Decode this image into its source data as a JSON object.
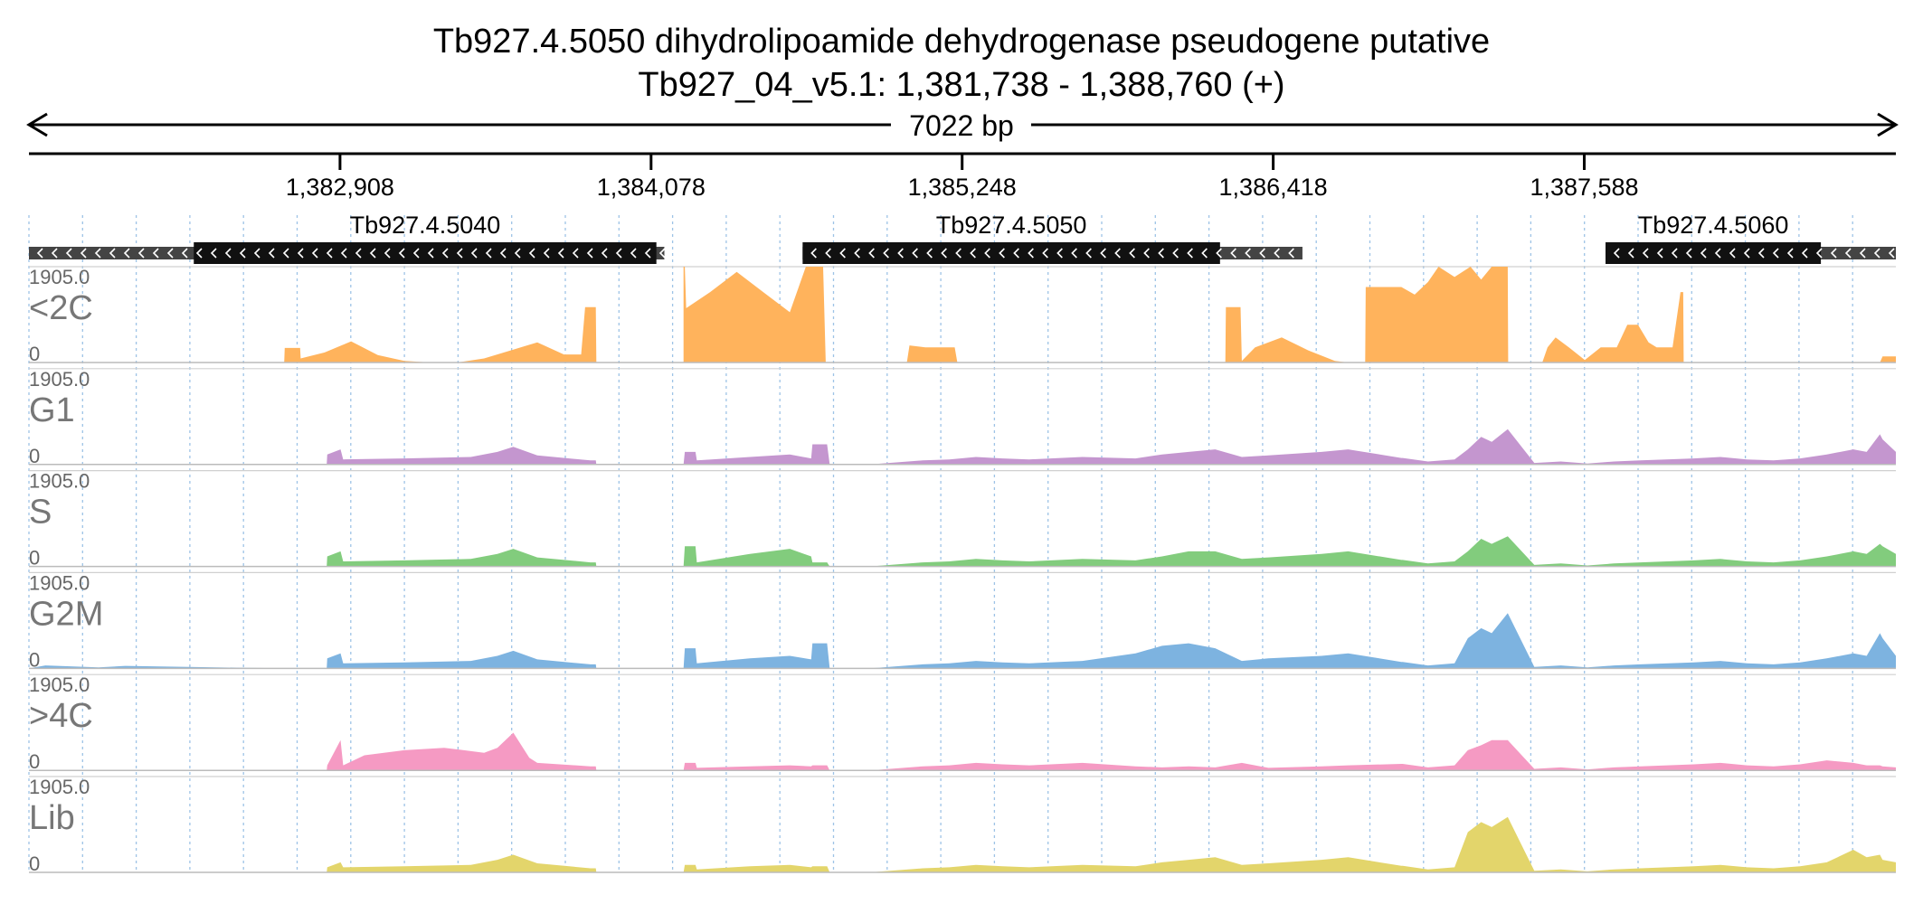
{
  "title": {
    "line1": "Tb927.4.5050  dihydrolipoamide dehydrogenase  pseudogene  putative",
    "line2": "Tb927_04_v5.1: 1,381,738 - 1,388,760 (+)"
  },
  "span_label": "7022 bp",
  "chart_data": {
    "type": "area",
    "x_range": [
      1381738,
      1388760
    ],
    "ticks": [
      {
        "value": 1382908,
        "label": "1,382,908"
      },
      {
        "value": 1384078,
        "label": "1,384,078"
      },
      {
        "value": 1385248,
        "label": "1,385,248"
      },
      {
        "value": 1386418,
        "label": "1,386,418"
      },
      {
        "value": 1387588,
        "label": "1,387,588"
      }
    ],
    "grid": true,
    "genes": [
      {
        "name": "Tb927.4.5040",
        "strand": "-",
        "utr_start": 1381738,
        "cds_start": 1382358,
        "cds_end": 1384098,
        "utr_end": 1384128
      },
      {
        "name": "Tb927.4.5050",
        "strand": "-",
        "utr_start": 1384648,
        "cds_start": 1384648,
        "cds_end": 1386218,
        "utr_end": 1386528
      },
      {
        "name": "Tb927.4.5060",
        "strand": "-",
        "utr_start": 1387668,
        "cds_start": 1387668,
        "cds_end": 1388478,
        "utr_end": 1388760
      }
    ],
    "ylim": [
      0,
      1905.0
    ],
    "y_max_label": "1905.0",
    "y_min_label": "0",
    "tracks": [
      {
        "name": "<2C",
        "color": "#ffb35c",
        "x": [
          1381738,
          1382698,
          1382700,
          1382758,
          1382760,
          1382850,
          1382950,
          1383050,
          1383150,
          1383250,
          1383350,
          1383450,
          1383550,
          1383650,
          1383750,
          1383815,
          1383830,
          1383870,
          1383872,
          1383890,
          1383960,
          1384020,
          1384100,
          1384200,
          1384200,
          1384205,
          1384210,
          1384300,
          1384400,
          1384500,
          1384600,
          1384660,
          1384725,
          1384735,
          1384740,
          1385040,
          1385050,
          1385110,
          1385220,
          1385230,
          1385280,
          1385290,
          1385350,
          1385400,
          1386238,
          1386240,
          1386295,
          1386300,
          1386350,
          1386450,
          1386550,
          1386650,
          1386700,
          1386764,
          1386766,
          1386900,
          1386950,
          1387000,
          1387040,
          1387100,
          1387160,
          1387200,
          1387240,
          1387300,
          1387302,
          1387360,
          1387430,
          1387450,
          1387480,
          1387530,
          1387590,
          1387650,
          1387710,
          1387750,
          1387790,
          1387830,
          1387860,
          1387920,
          1387950,
          1387960,
          1387962,
          1387990,
          1388060,
          1388700,
          1388710,
          1388760
        ],
        "y": [
          0,
          0,
          290,
          290,
          80,
          200,
          420,
          150,
          30,
          0,
          0,
          80,
          240,
          400,
          160,
          160,
          1100,
          1100,
          0,
          0,
          0,
          0,
          0,
          0,
          1905,
          1905,
          1080,
          1400,
          1800,
          1400,
          1000,
          1905,
          1905,
          0,
          0,
          0,
          340,
          300,
          300,
          0,
          0,
          0,
          0,
          0,
          0,
          1100,
          1100,
          30,
          300,
          500,
          240,
          30,
          0,
          0,
          1500,
          1500,
          1350,
          1600,
          1905,
          1700,
          1905,
          1650,
          1905,
          1905,
          0,
          0,
          0,
          300,
          500,
          300,
          50,
          300,
          300,
          750,
          750,
          400,
          300,
          300,
          1400,
          1400,
          0,
          0,
          0,
          0,
          120,
          120
        ]
      },
      {
        "name": "G1",
        "color": "#c496cf",
        "x": [
          1381738,
          1382700,
          1382858,
          1382860,
          1382910,
          1382920,
          1383150,
          1383400,
          1383500,
          1383560,
          1383650,
          1383850,
          1383870,
          1383872,
          1383970,
          1383980,
          1384200,
          1384205,
          1384245,
          1384250,
          1384450,
          1384600,
          1384680,
          1384685,
          1384740,
          1384750,
          1384900,
          1385100,
          1385200,
          1385300,
          1385400,
          1385500,
          1385700,
          1385900,
          1386000,
          1386100,
          1386200,
          1386300,
          1386400,
          1386600,
          1386700,
          1386900,
          1386905,
          1387000,
          1387100,
          1387150,
          1387200,
          1387240,
          1387300,
          1387400,
          1387500,
          1387600,
          1387700,
          1387800,
          1388000,
          1388100,
          1388200,
          1388300,
          1388400,
          1388500,
          1388600,
          1388650,
          1388700,
          1388710,
          1388760
        ],
        "y": [
          0,
          0,
          0,
          200,
          300,
          100,
          120,
          150,
          250,
          350,
          180,
          80,
          80,
          0,
          0,
          0,
          0,
          250,
          250,
          80,
          150,
          200,
          120,
          400,
          400,
          0,
          0,
          80,
          100,
          150,
          120,
          100,
          150,
          120,
          200,
          250,
          300,
          150,
          180,
          250,
          300,
          130,
          130,
          60,
          100,
          300,
          550,
          450,
          700,
          30,
          60,
          20,
          60,
          80,
          120,
          150,
          100,
          80,
          120,
          200,
          300,
          250,
          600,
          500,
          250
        ]
      },
      {
        "name": "S",
        "color": "#82cc7d",
        "x": [
          1381738,
          1382700,
          1382858,
          1382860,
          1382910,
          1382920,
          1383150,
          1383400,
          1383500,
          1383560,
          1383650,
          1383850,
          1383870,
          1383872,
          1383970,
          1383980,
          1384200,
          1384205,
          1384245,
          1384250,
          1384450,
          1384600,
          1384680,
          1384685,
          1384740,
          1384750,
          1384900,
          1385100,
          1385200,
          1385300,
          1385400,
          1385500,
          1385700,
          1385900,
          1386000,
          1386100,
          1386200,
          1386300,
          1386400,
          1386600,
          1386700,
          1386900,
          1386905,
          1387000,
          1387100,
          1387150,
          1387200,
          1387240,
          1387300,
          1387400,
          1387500,
          1387600,
          1387700,
          1387800,
          1388000,
          1388100,
          1388200,
          1388300,
          1388400,
          1388500,
          1388600,
          1388650,
          1388700,
          1388710,
          1388760
        ],
        "y": [
          0,
          0,
          0,
          200,
          300,
          100,
          120,
          150,
          250,
          350,
          180,
          80,
          80,
          0,
          0,
          0,
          0,
          400,
          400,
          80,
          250,
          350,
          200,
          80,
          80,
          0,
          0,
          80,
          100,
          150,
          120,
          100,
          150,
          120,
          200,
          300,
          300,
          150,
          180,
          250,
          300,
          130,
          130,
          60,
          100,
          300,
          550,
          450,
          600,
          30,
          60,
          20,
          60,
          80,
          120,
          150,
          100,
          80,
          120,
          200,
          300,
          250,
          450,
          400,
          250
        ]
      },
      {
        "name": "G2M",
        "color": "#7db3e0",
        "x": [
          1381738,
          1381800,
          1382000,
          1382100,
          1382700,
          1382858,
          1382860,
          1382910,
          1382920,
          1383150,
          1383400,
          1383500,
          1383560,
          1383650,
          1383850,
          1383870,
          1383872,
          1383970,
          1383980,
          1384200,
          1384205,
          1384245,
          1384250,
          1384450,
          1384600,
          1384680,
          1384685,
          1384740,
          1384750,
          1384900,
          1385100,
          1385200,
          1385300,
          1385400,
          1385500,
          1385700,
          1385900,
          1386000,
          1386100,
          1386200,
          1386300,
          1386400,
          1386600,
          1386700,
          1386900,
          1386905,
          1387000,
          1387100,
          1387150,
          1387200,
          1387240,
          1387300,
          1387400,
          1387500,
          1387600,
          1387700,
          1387800,
          1388000,
          1388100,
          1388200,
          1388300,
          1388400,
          1388500,
          1388600,
          1388650,
          1388700,
          1388710,
          1388760
        ],
        "y": [
          0,
          60,
          20,
          50,
          0,
          0,
          200,
          300,
          100,
          120,
          150,
          250,
          350,
          180,
          80,
          80,
          0,
          0,
          0,
          0,
          400,
          400,
          100,
          200,
          250,
          180,
          500,
          500,
          0,
          0,
          80,
          100,
          150,
          120,
          100,
          150,
          300,
          450,
          500,
          400,
          150,
          200,
          250,
          300,
          130,
          130,
          60,
          100,
          600,
          800,
          700,
          1100,
          30,
          60,
          20,
          60,
          80,
          120,
          150,
          100,
          80,
          120,
          200,
          300,
          250,
          700,
          600,
          250
        ]
      },
      {
        "name": ">4C",
        "color": "#f59ac3",
        "x": [
          1381738,
          1382700,
          1382858,
          1382860,
          1382910,
          1382920,
          1383000,
          1383150,
          1383300,
          1383450,
          1383500,
          1383560,
          1383620,
          1383650,
          1383850,
          1383870,
          1383872,
          1383970,
          1383980,
          1384200,
          1384205,
          1384245,
          1384250,
          1384450,
          1384600,
          1384680,
          1384685,
          1384740,
          1384750,
          1384900,
          1385100,
          1385200,
          1385300,
          1385400,
          1385500,
          1385700,
          1385900,
          1386000,
          1386100,
          1386200,
          1386300,
          1386400,
          1386600,
          1386700,
          1386900,
          1386905,
          1387000,
          1387100,
          1387150,
          1387200,
          1387240,
          1387300,
          1387400,
          1387500,
          1387600,
          1387700,
          1387800,
          1388000,
          1388100,
          1388200,
          1388300,
          1388400,
          1388500,
          1388600,
          1388650,
          1388700,
          1388710,
          1388760
        ],
        "y": [
          0,
          0,
          0,
          100,
          600,
          100,
          300,
          400,
          450,
          350,
          450,
          750,
          250,
          150,
          80,
          80,
          0,
          0,
          0,
          0,
          150,
          150,
          50,
          80,
          100,
          80,
          100,
          100,
          0,
          0,
          80,
          100,
          150,
          120,
          100,
          150,
          80,
          60,
          80,
          60,
          150,
          50,
          80,
          100,
          130,
          130,
          60,
          100,
          400,
          500,
          600,
          600,
          30,
          60,
          20,
          60,
          80,
          120,
          150,
          100,
          80,
          120,
          200,
          150,
          100,
          100,
          80,
          60
        ]
      },
      {
        "name": "Lib",
        "color": "#e3d56b",
        "x": [
          1381738,
          1382700,
          1382858,
          1382860,
          1382910,
          1382920,
          1383150,
          1383400,
          1383500,
          1383560,
          1383650,
          1383850,
          1383870,
          1383872,
          1383970,
          1383980,
          1384200,
          1384205,
          1384245,
          1384250,
          1384450,
          1384600,
          1384680,
          1384685,
          1384740,
          1384750,
          1384900,
          1385100,
          1385200,
          1385300,
          1385400,
          1385500,
          1385700,
          1385900,
          1386000,
          1386100,
          1386200,
          1386300,
          1386400,
          1386600,
          1386700,
          1386900,
          1386905,
          1387000,
          1387100,
          1387150,
          1387200,
          1387240,
          1387300,
          1387400,
          1387500,
          1387600,
          1387700,
          1387800,
          1388000,
          1388100,
          1388200,
          1388300,
          1388400,
          1388500,
          1388600,
          1388650,
          1388700,
          1388710,
          1388760
        ],
        "y": [
          0,
          0,
          0,
          100,
          200,
          100,
          120,
          150,
          250,
          350,
          180,
          80,
          80,
          0,
          0,
          0,
          0,
          150,
          150,
          60,
          120,
          150,
          100,
          120,
          120,
          0,
          0,
          80,
          100,
          150,
          120,
          100,
          150,
          120,
          200,
          250,
          300,
          150,
          180,
          250,
          300,
          130,
          130,
          60,
          100,
          800,
          1000,
          900,
          1100,
          30,
          60,
          20,
          60,
          80,
          120,
          150,
          100,
          80,
          120,
          200,
          450,
          300,
          350,
          250,
          200
        ]
      }
    ]
  }
}
